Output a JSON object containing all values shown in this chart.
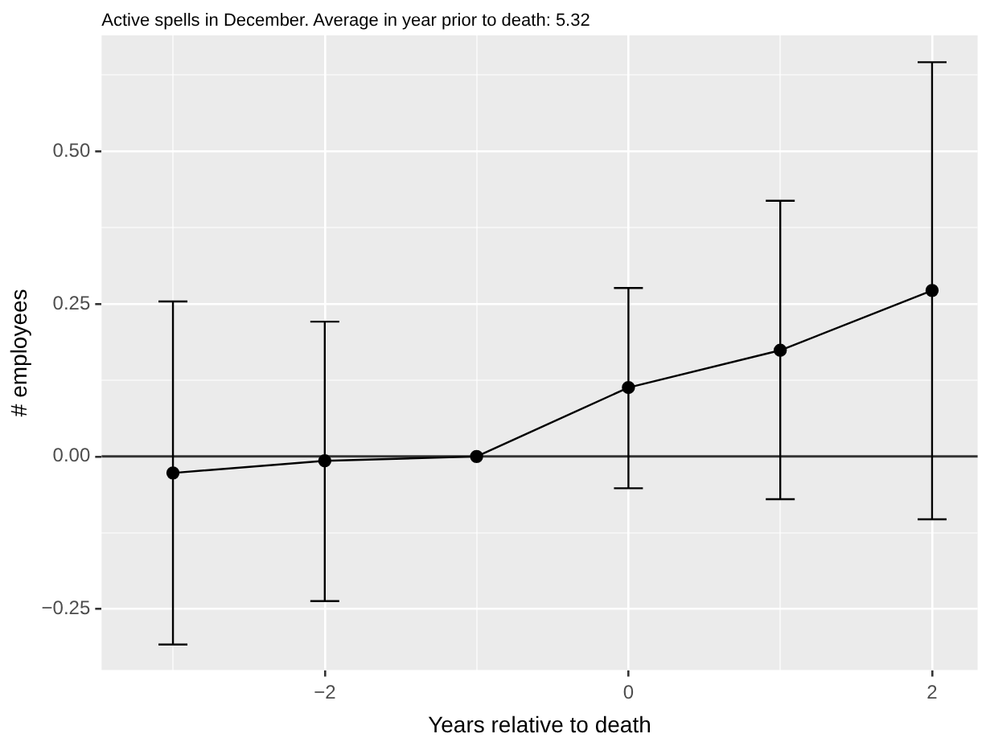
{
  "chart_data": {
    "type": "line",
    "title": "Active spells in December. Average in year prior to death: 5.32",
    "xlabel": "Years relative to death",
    "ylabel": "# employees",
    "x": [
      -3,
      -2,
      -1,
      0,
      1,
      2
    ],
    "series": [
      {
        "color": "#000000",
        "values": [
          -0.027,
          -0.007,
          0,
          0.113,
          0.174,
          0.272
        ],
        "errors": [
          [
            -0.308,
            0.254
          ],
          [
            -0.237,
            0.221
          ],
          null,
          [
            -0.052,
            0.276
          ],
          [
            -0.07,
            0.419
          ],
          [
            -0.103,
            0.646
          ]
        ]
      }
    ],
    "xlim": [
      -3.47,
      2.3
    ],
    "xticks": [
      {
        "value": -3,
        "label": null
      },
      {
        "value": -2,
        "label": "−2"
      },
      {
        "value": -1,
        "label": null
      },
      {
        "value": 0,
        "label": "0"
      },
      {
        "value": 1,
        "label": null
      },
      {
        "value": 2,
        "label": "2"
      }
    ],
    "ylim": [
      -0.35,
      0.69
    ],
    "yticks": [
      {
        "value": -0.25,
        "label": "−0.25"
      },
      {
        "value": -0.125,
        "label": null
      },
      {
        "value": 0,
        "label": "0.00"
      },
      {
        "value": 0.125,
        "label": null
      },
      {
        "value": 0.25,
        "label": "0.25"
      },
      {
        "value": 0.375,
        "label": null
      },
      {
        "value": 0.5,
        "label": "0.50"
      },
      {
        "value": 0.625,
        "label": null
      }
    ],
    "ref_lines": [
      {
        "axis": "y",
        "value": 0,
        "color": "#333333"
      }
    ],
    "grid": true,
    "legend": false,
    "marker": "circle",
    "line_style": "solid"
  }
}
